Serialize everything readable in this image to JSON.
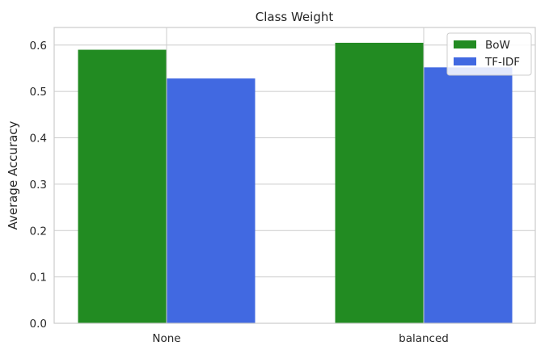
{
  "chart_data": {
    "type": "bar",
    "title": "Class Weight",
    "xlabel": "",
    "ylabel": "Average Accuracy",
    "categories": [
      "None",
      "balanced"
    ],
    "series": [
      {
        "name": "BoW",
        "color": "#228b22",
        "values": [
          0.59,
          0.605
        ]
      },
      {
        "name": "TF-IDF",
        "color": "#4169e1",
        "values": [
          0.528,
          0.552
        ]
      }
    ],
    "ylim": [
      0,
      0.638
    ],
    "yticks": [
      "0.0",
      "0.1",
      "0.2",
      "0.3",
      "0.4",
      "0.5",
      "0.6"
    ],
    "grid": true,
    "legend_position": "top-right"
  }
}
